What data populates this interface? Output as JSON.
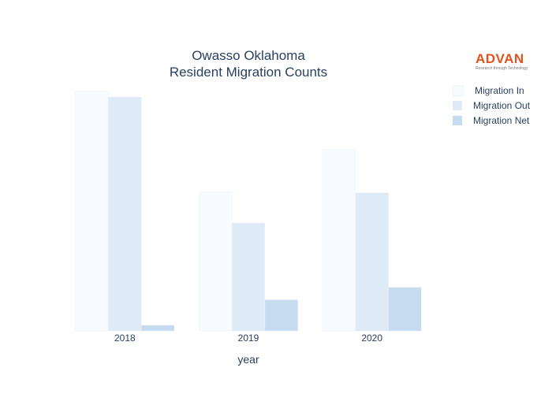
{
  "chart_data": {
    "type": "bar",
    "title_lines": [
      "Owasso Oklahoma",
      "Resident Migration Counts"
    ],
    "xlabel": "year",
    "ylabel": "",
    "categories": [
      "2018",
      "2019",
      "2020"
    ],
    "series": [
      {
        "name": "Migration In",
        "values": [
          2690,
          1560,
          2040
        ],
        "color": "#f7fbff"
      },
      {
        "name": "Migration Out",
        "values": [
          2625,
          1210,
          1550
        ],
        "color": "#deebf7"
      },
      {
        "name": "Migration Net",
        "values": [
          65,
          350,
          490
        ],
        "color": "#c6dbef"
      }
    ],
    "ylim": [
      0,
      2830
    ],
    "grid": false,
    "legend_position": "right"
  },
  "logo": {
    "word": "ADVAN",
    "tagline": "Research through Technology"
  }
}
